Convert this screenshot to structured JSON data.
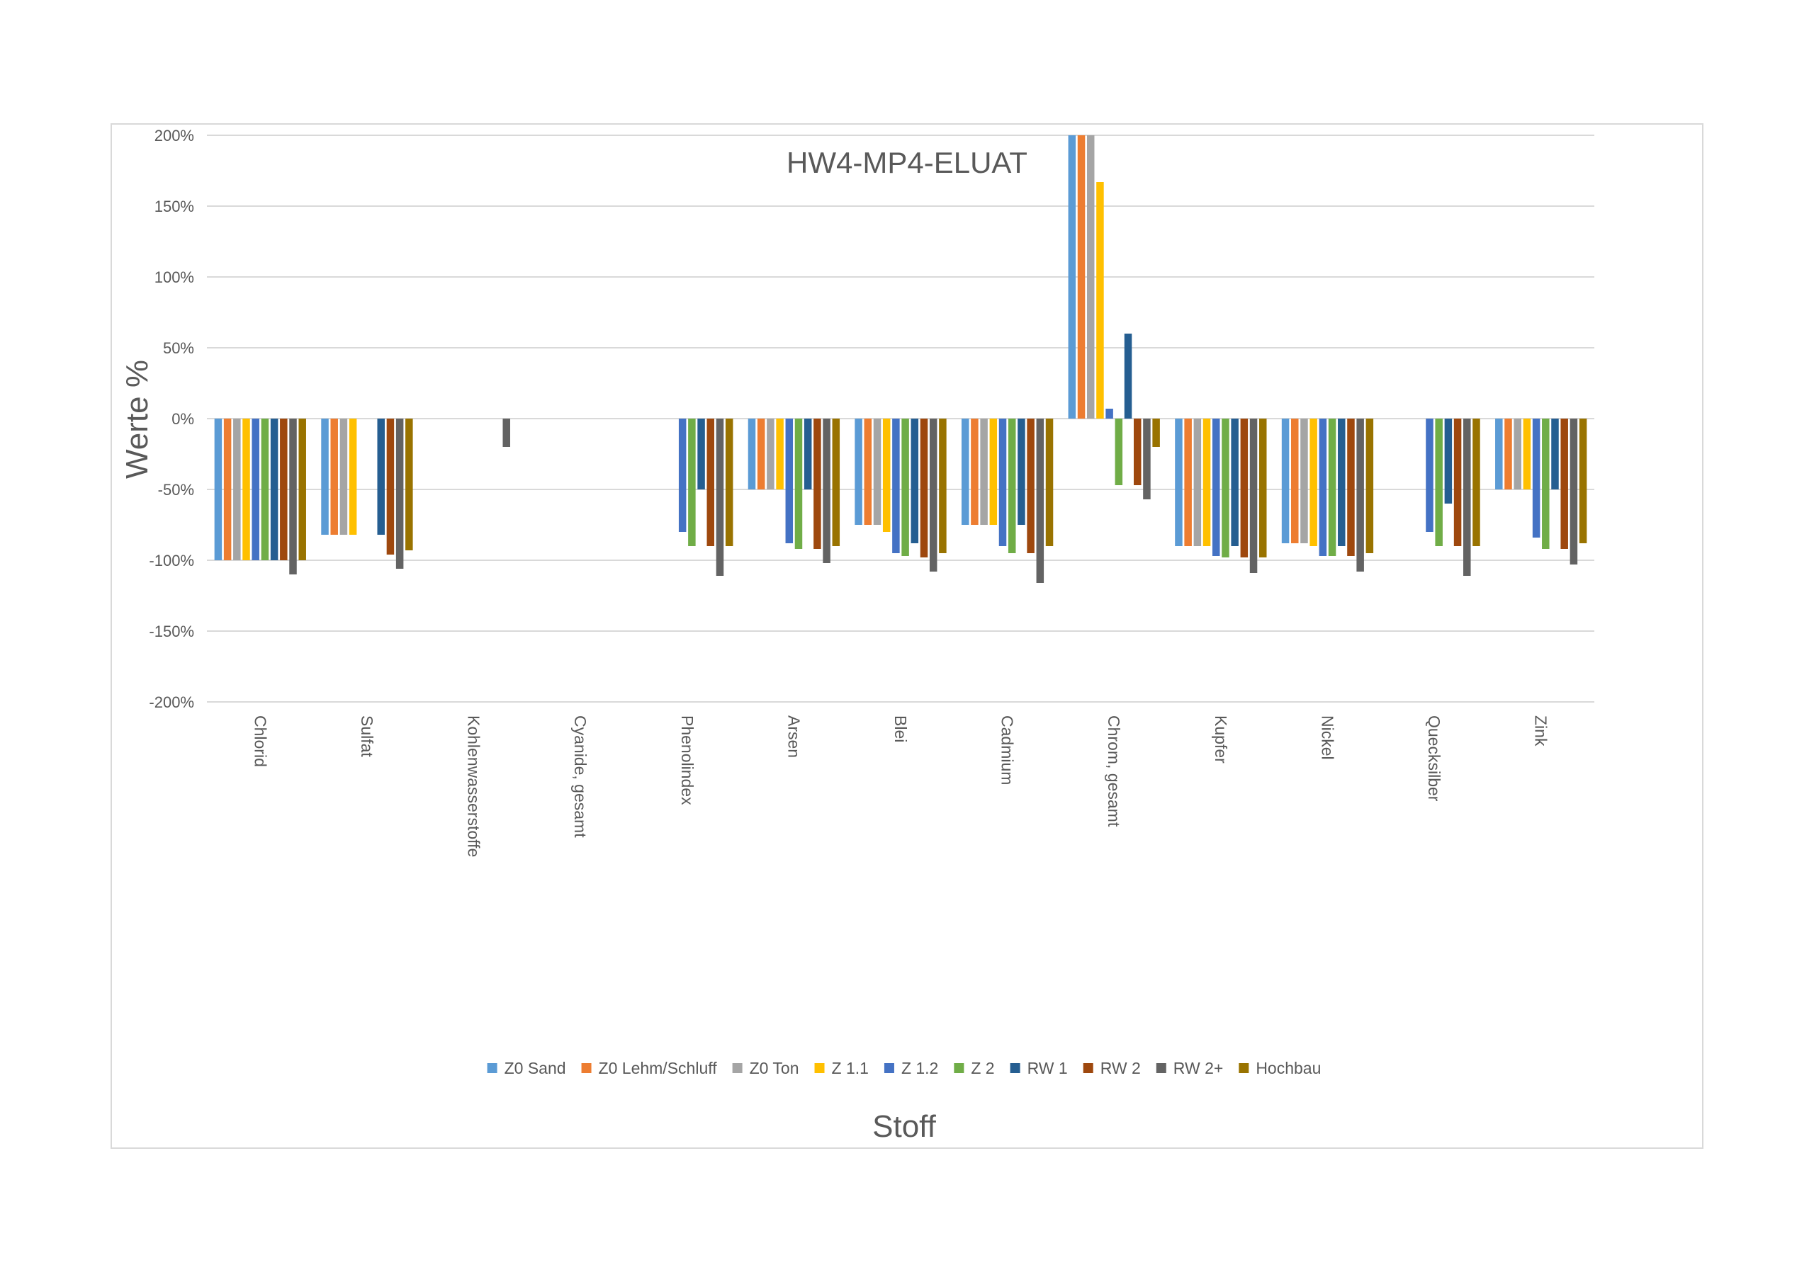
{
  "chart_data": {
    "type": "bar",
    "title": "HW4-MP4-ELUAT",
    "xlabel": "Stoff",
    "ylabel": "Werte %",
    "ylim": [
      -200,
      200
    ],
    "yticks": [
      200,
      150,
      100,
      50,
      0,
      -50,
      -100,
      -150,
      -200
    ],
    "ytick_labels": [
      "200%",
      "150%",
      "100%",
      "50%",
      "0%",
      "-50%",
      "-100%",
      "-150%",
      "-200%"
    ],
    "grid": true,
    "legend_position": "bottom",
    "categories": [
      "Chlorid",
      "Sulfat",
      "Kohlenwasserstoffe",
      "Cyanide, gesamt",
      "Phenolindex",
      "Arsen",
      "Blei",
      "Cadmium",
      "Chrom, gesamt",
      "Kupfer",
      "Nickel",
      "Quecksilber",
      "Zink"
    ],
    "series": [
      {
        "name": "Z0 Sand",
        "color": "#5B9BD5",
        "values": [
          -100,
          -82,
          null,
          null,
          null,
          -50,
          -75,
          -75,
          200,
          -90,
          -88,
          null,
          -50
        ]
      },
      {
        "name": "Z0 Lehm/Schluff",
        "color": "#ED7D31",
        "values": [
          -100,
          -82,
          null,
          null,
          null,
          -50,
          -75,
          -75,
          200,
          -90,
          -88,
          null,
          -50
        ]
      },
      {
        "name": "Z0 Ton",
        "color": "#A5A5A5",
        "values": [
          -100,
          -82,
          null,
          null,
          null,
          -50,
          -75,
          -75,
          200,
          -90,
          -88,
          null,
          -50
        ]
      },
      {
        "name": "Z 1.1",
        "color": "#FFC000",
        "values": [
          -100,
          -82,
          null,
          null,
          null,
          -50,
          -80,
          -75,
          167,
          -90,
          -90,
          null,
          -50
        ]
      },
      {
        "name": "Z 1.2",
        "color": "#4472C4",
        "values": [
          -100,
          null,
          null,
          null,
          -80,
          -88,
          -95,
          -90,
          7,
          -97,
          -97,
          -80,
          -84
        ]
      },
      {
        "name": "Z 2",
        "color": "#70AD47",
        "values": [
          -100,
          null,
          null,
          null,
          -90,
          -92,
          -97,
          -95,
          -47,
          -98,
          -97,
          -90,
          -92
        ]
      },
      {
        "name": "RW 1",
        "color": "#255E91",
        "values": [
          -100,
          -82,
          null,
          null,
          -50,
          -50,
          -88,
          -75,
          60,
          -90,
          -90,
          -60,
          -50
        ]
      },
      {
        "name": "RW 2",
        "color": "#9E480E",
        "values": [
          -100,
          -96,
          null,
          null,
          -90,
          -92,
          -98,
          -95,
          -47,
          -98,
          -97,
          -90,
          -92
        ]
      },
      {
        "name": "RW 2+",
        "color": "#636363",
        "values": [
          -110,
          -106,
          -20,
          null,
          -111,
          -102,
          -108,
          -116,
          -57,
          -109,
          -108,
          -111,
          -103
        ]
      },
      {
        "name": "Hochbau",
        "color": "#997300",
        "values": [
          -100,
          -93,
          null,
          null,
          -90,
          -90,
          -95,
          -90,
          -20,
          -98,
          -95,
          -90,
          -88
        ]
      }
    ]
  }
}
